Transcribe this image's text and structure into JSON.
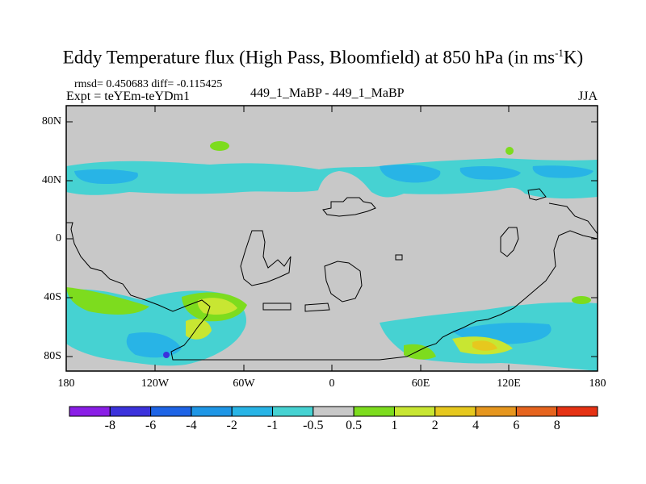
{
  "title": {
    "prefix": "Eddy Temperature flux (High Pass, Bloomfield) at 850 hPa (in ms",
    "sup": "-1",
    "suffix": "K)"
  },
  "subtitle": {
    "stats": "rmsd= 0.450683 diff= -0.115425",
    "expt": "Expt = teYEm-teYDm1",
    "center": "449_1_MaBP - 449_1_MaBP",
    "season": "JJA"
  },
  "axes": {
    "lat_labels": [
      "80N",
      "40N",
      "0",
      "40S",
      "80S"
    ],
    "lon_labels": [
      "180",
      "120W",
      "60W",
      "0",
      "60E",
      "120E",
      "180"
    ]
  },
  "colorbar": {
    "labels": [
      "-8",
      "-6",
      "-4",
      "-2",
      "-1",
      "-0.5",
      "0.5",
      "1",
      "2",
      "4",
      "6",
      "8"
    ],
    "colors": [
      "#8a1ee6",
      "#3c32dc",
      "#1e64e6",
      "#1e96e6",
      "#28b4e6",
      "#46d2d2",
      "#c8c8c8",
      "#7ddc1e",
      "#c8e632",
      "#e6c81e",
      "#e6961e",
      "#e6641e",
      "#e63214"
    ]
  },
  "colors": {
    "background_field": "#c8c8c8",
    "frame": "#000000"
  }
}
